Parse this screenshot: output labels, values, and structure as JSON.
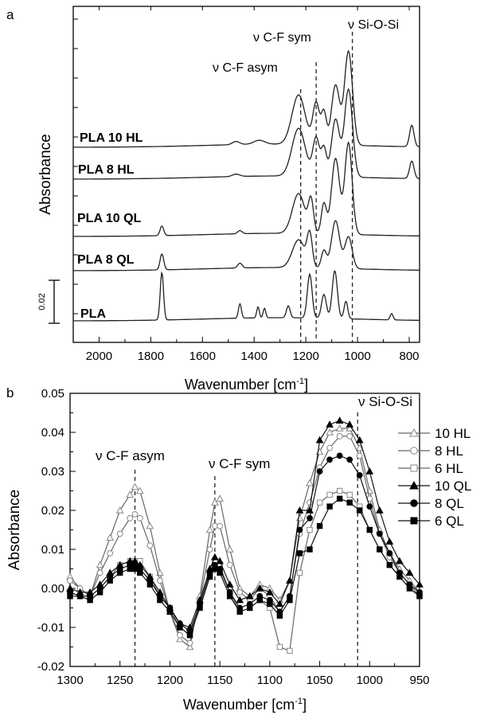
{
  "chart_data": [
    {
      "panel": "a",
      "type": "line",
      "xlabel": "Wavenumber [cm",
      "xlabel_sup": "-1",
      "xlabel_end": "]",
      "ylabel": "Absorbance",
      "x_reversed": true,
      "xlim": [
        2100,
        760
      ],
      "xticks": [
        "2000",
        "1800",
        "1600",
        "1400",
        "1200",
        "1000",
        "800"
      ],
      "xtick_values": [
        2000,
        1800,
        1600,
        1400,
        1200,
        1000,
        800
      ],
      "scale_bar_label": "0.02",
      "scale_bar_value": 0.02,
      "vlines": [
        {
          "x": 1220,
          "label": "ν C-F asym"
        },
        {
          "x": 1160,
          "label": "ν C-F sym"
        },
        {
          "x": 1020,
          "label": "ν Si-O-Si"
        }
      ],
      "series": [
        {
          "name": "PLA 10 HL"
        },
        {
          "name": "PLA 8 HL"
        },
        {
          "name": "PLA 10 QL"
        },
        {
          "name": "PLA 8 QL"
        },
        {
          "name": "PLA"
        }
      ]
    },
    {
      "panel": "b",
      "type": "line",
      "xlabel": "Wavenumber [cm",
      "xlabel_sup": "-1",
      "xlabel_end": "]",
      "ylabel": "Absorbance",
      "x_reversed": true,
      "xlim": [
        1300,
        950
      ],
      "ylim": [
        -0.02,
        0.05
      ],
      "xticks": [
        "1300",
        "1250",
        "1200",
        "1150",
        "1100",
        "1050",
        "1000",
        "950"
      ],
      "xtick_values": [
        1300,
        1250,
        1200,
        1150,
        1100,
        1050,
        1000,
        950
      ],
      "yticks": [
        "-0.02",
        "-0.01",
        "0.00",
        "0.01",
        "0.02",
        "0.03",
        "0.04",
        "0.05"
      ],
      "ytick_values": [
        -0.02,
        -0.01,
        0.0,
        0.01,
        0.02,
        0.03,
        0.04,
        0.05
      ],
      "vlines": [
        {
          "x": 1235,
          "label": "ν C-F asym"
        },
        {
          "x": 1155,
          "label": "ν C-F sym"
        },
        {
          "x": 1012,
          "label": "ν Si-O-Si"
        }
      ],
      "legend_position": "right",
      "x": [
        1300,
        1290,
        1280,
        1270,
        1260,
        1250,
        1240,
        1235,
        1230,
        1220,
        1210,
        1200,
        1190,
        1180,
        1170,
        1160,
        1155,
        1150,
        1140,
        1130,
        1120,
        1110,
        1100,
        1090,
        1080,
        1070,
        1060,
        1050,
        1040,
        1030,
        1020,
        1010,
        1000,
        990,
        980,
        970,
        960,
        950
      ],
      "series": [
        {
          "name": "10 HL",
          "marker": "triangle-open",
          "values": [
            0.003,
            0.0,
            -0.002,
            0.006,
            0.013,
            0.02,
            0.024,
            0.026,
            0.025,
            0.016,
            0.004,
            -0.006,
            -0.013,
            -0.015,
            -0.002,
            0.015,
            0.022,
            0.023,
            0.01,
            0.0,
            -0.002,
            0.001,
            0.0,
            -0.003,
            0.002,
            0.018,
            0.027,
            0.035,
            0.04,
            0.041,
            0.041,
            0.036,
            0.025,
            0.015,
            0.009,
            0.005,
            0.002,
            -0.001
          ]
        },
        {
          "name": "8 HL",
          "marker": "circle-open",
          "values": [
            0.002,
            0.0,
            -0.002,
            0.004,
            0.009,
            0.014,
            0.018,
            0.019,
            0.018,
            0.011,
            0.002,
            -0.006,
            -0.012,
            -0.014,
            -0.003,
            0.01,
            0.016,
            0.016,
            0.006,
            -0.001,
            -0.003,
            0.0,
            -0.002,
            -0.006,
            -0.002,
            0.014,
            0.022,
            0.031,
            0.036,
            0.039,
            0.039,
            0.034,
            0.023,
            0.014,
            0.008,
            0.004,
            0.001,
            -0.002
          ]
        },
        {
          "name": "6 HL",
          "marker": "square-open",
          "values": [
            -0.001,
            -0.002,
            -0.002,
            0.0,
            0.003,
            0.006,
            0.007,
            0.007,
            0.007,
            0.003,
            -0.002,
            -0.005,
            -0.01,
            -0.012,
            -0.004,
            0.004,
            0.007,
            0.006,
            -0.001,
            -0.006,
            -0.005,
            -0.003,
            -0.005,
            -0.015,
            -0.016,
            0.004,
            0.015,
            0.022,
            0.024,
            0.025,
            0.024,
            0.021,
            0.015,
            0.01,
            0.006,
            0.003,
            0.0,
            -0.002
          ]
        },
        {
          "name": "10 QL",
          "marker": "triangle-filled",
          "values": [
            0.0,
            -0.001,
            -0.001,
            0.001,
            0.004,
            0.006,
            0.007,
            0.007,
            0.006,
            0.003,
            -0.001,
            -0.005,
            -0.009,
            -0.01,
            -0.003,
            0.005,
            0.008,
            0.007,
            0.001,
            -0.003,
            -0.002,
            0.0,
            -0.001,
            -0.004,
            0.002,
            0.02,
            0.02,
            0.038,
            0.042,
            0.043,
            0.042,
            0.038,
            0.03,
            0.02,
            0.012,
            0.007,
            0.004,
            0.001
          ]
        },
        {
          "name": "8 QL",
          "marker": "circle-filled",
          "values": [
            -0.001,
            -0.002,
            -0.002,
            0.0,
            0.003,
            0.005,
            0.006,
            0.006,
            0.005,
            0.002,
            -0.002,
            -0.005,
            -0.009,
            -0.011,
            -0.004,
            0.004,
            0.006,
            0.005,
            -0.001,
            -0.005,
            -0.004,
            -0.002,
            -0.003,
            -0.006,
            -0.002,
            0.015,
            0.018,
            0.03,
            0.033,
            0.034,
            0.033,
            0.029,
            0.021,
            0.014,
            0.009,
            0.004,
            0.001,
            -0.001
          ]
        },
        {
          "name": "6 QL",
          "marker": "square-filled",
          "values": [
            -0.002,
            -0.002,
            -0.003,
            -0.001,
            0.002,
            0.004,
            0.005,
            0.005,
            0.004,
            0.001,
            -0.003,
            -0.006,
            -0.01,
            -0.012,
            -0.005,
            0.003,
            0.005,
            0.004,
            -0.002,
            -0.006,
            -0.005,
            -0.003,
            -0.004,
            -0.007,
            -0.003,
            0.009,
            0.01,
            0.016,
            0.021,
            0.023,
            0.022,
            0.02,
            0.015,
            0.01,
            0.006,
            0.003,
            0.0,
            -0.002
          ]
        }
      ]
    }
  ]
}
